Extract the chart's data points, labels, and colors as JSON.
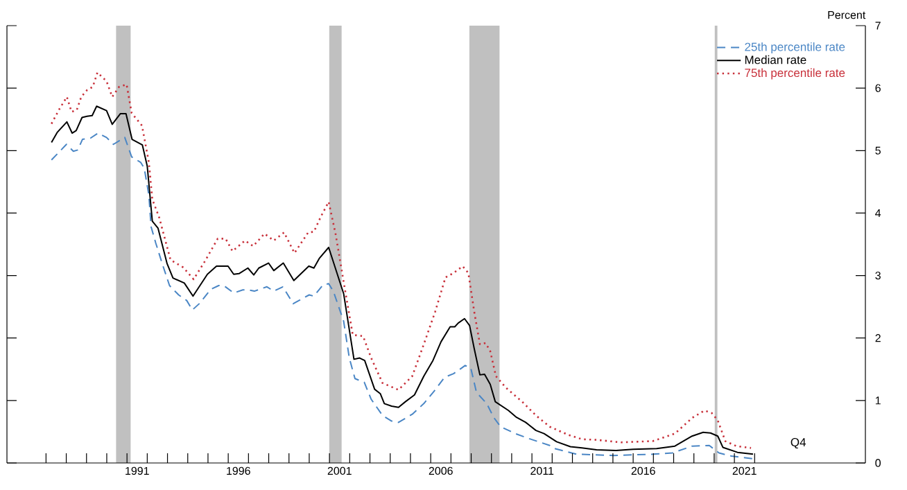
{
  "chart_data": {
    "type": "line",
    "ylabel": "Percent",
    "xlim": [
      1985.07,
      2027.47
    ],
    "ylim": [
      0,
      7
    ],
    "xticks": [
      {
        "value": 1987,
        "label": null
      },
      {
        "value": 1988,
        "label": null
      },
      {
        "value": 1989,
        "label": null
      },
      {
        "value": 1990,
        "label": null
      },
      {
        "value": 1991,
        "label": null
      },
      {
        "value": 1992,
        "label": null
      },
      {
        "value": 1993,
        "label": null
      },
      {
        "value": 1994,
        "label": null
      },
      {
        "value": 1995,
        "label": null
      },
      {
        "value": 1996,
        "label": null
      },
      {
        "value": 1997,
        "label": null
      },
      {
        "value": 1998,
        "label": null
      },
      {
        "value": 1999,
        "label": null
      },
      {
        "value": 2000,
        "label": null
      },
      {
        "value": 2001,
        "label": null
      },
      {
        "value": 2002,
        "label": null
      },
      {
        "value": 2003,
        "label": null
      },
      {
        "value": 2004,
        "label": null
      },
      {
        "value": 2005,
        "label": null
      },
      {
        "value": 2006,
        "label": null
      },
      {
        "value": 2007,
        "label": null
      },
      {
        "value": 2008,
        "label": null
      },
      {
        "value": 2009,
        "label": null
      },
      {
        "value": 2010,
        "label": null
      },
      {
        "value": 2011,
        "label": null
      },
      {
        "value": 2012,
        "label": null
      },
      {
        "value": 2013,
        "label": null
      },
      {
        "value": 2014,
        "label": null
      },
      {
        "value": 2015,
        "label": null
      },
      {
        "value": 2016,
        "label": null
      },
      {
        "value": 2017,
        "label": null
      },
      {
        "value": 2018,
        "label": null
      },
      {
        "value": 2019,
        "label": null
      },
      {
        "value": 2020,
        "label": null
      },
      {
        "value": 2021,
        "label": null
      },
      {
        "value": 2022,
        "label": null
      },
      {
        "value": 1991.5,
        "label": "1991"
      },
      {
        "value": 1996.5,
        "label": "1996"
      },
      {
        "value": 2001.5,
        "label": "2001"
      },
      {
        "value": 2006.5,
        "label": "2006"
      },
      {
        "value": 2011.5,
        "label": "2011"
      },
      {
        "value": 2016.5,
        "label": "2016"
      },
      {
        "value": 2021.5,
        "label": "2021"
      }
    ],
    "yticks": [
      0,
      1,
      2,
      3,
      4,
      5,
      6,
      7
    ],
    "legend": "top right",
    "annotations": [
      "Q4"
    ],
    "bands": [
      {
        "axis": "x",
        "from": 1990.46,
        "to": 1991.18,
        "color": "#c0c0c0"
      },
      {
        "axis": "x",
        "from": 2000.99,
        "to": 2001.6,
        "color": "#c0c0c0"
      },
      {
        "axis": "x",
        "from": 2007.91,
        "to": 2009.4,
        "color": "#c0c0c0"
      },
      {
        "axis": "x",
        "from": 2020.03,
        "to": 2020.16,
        "color": "#c0c0c0"
      }
    ],
    "series": [
      {
        "name": "25th percentile rate",
        "color": "#4a86c5",
        "line_style": "dashed",
        "x": [
          1987.27,
          1988.01,
          1988.35,
          1988.57,
          1988.8,
          1989.2,
          1989.57,
          1989.99,
          1990.33,
          1990.89,
          1991.23,
          1991.68,
          1991.85,
          1992.08,
          1992.19,
          1992.42,
          1992.76,
          1993.1,
          1993.55,
          1993.95,
          1994.23,
          1994.57,
          1995.14,
          1995.53,
          1995.82,
          1996.27,
          1996.72,
          1997.0,
          1997.29,
          1997.91,
          1998.25,
          1998.7,
          1999.21,
          1999.49,
          2000.0,
          2000.23,
          2000.68,
          2000.96,
          2001.19,
          2001.7,
          2001.98,
          2002.26,
          2002.72,
          2003.06,
          2003.62,
          2004.07,
          2004.41,
          2005.09,
          2005.66,
          2006.22,
          2006.68,
          2007.13,
          2007.36,
          2007.7,
          2007.98,
          2008.26,
          2008.77,
          2009.11,
          2009.45,
          2010.18,
          2010.86,
          2011.88,
          2012.12,
          2013.21,
          2015.03,
          2016.97,
          2017.94,
          2018.91,
          2019.76,
          2020.24,
          2020.85,
          2021.88
        ],
        "values": [
          4.85,
          5.1,
          4.99,
          5.01,
          5.18,
          5.2,
          5.28,
          5.21,
          5.1,
          5.21,
          4.9,
          4.81,
          4.72,
          4.29,
          3.78,
          3.52,
          3.17,
          2.84,
          2.69,
          2.6,
          2.45,
          2.55,
          2.78,
          2.84,
          2.83,
          2.72,
          2.77,
          2.77,
          2.75,
          2.82,
          2.75,
          2.82,
          2.55,
          2.6,
          2.69,
          2.67,
          2.85,
          2.87,
          2.75,
          2.27,
          1.68,
          1.35,
          1.29,
          1.02,
          0.76,
          0.67,
          0.65,
          0.78,
          0.95,
          1.17,
          1.37,
          1.43,
          1.48,
          1.56,
          1.52,
          1.13,
          0.95,
          0.73,
          0.58,
          0.47,
          0.39,
          0.28,
          0.23,
          0.14,
          0.12,
          0.14,
          0.16,
          0.27,
          0.28,
          0.16,
          0.11,
          0.07
        ]
      },
      {
        "name": "Median rate",
        "color": "#000000",
        "line_style": "solid",
        "x": [
          1987.27,
          1987.55,
          1988.03,
          1988.29,
          1988.49,
          1988.78,
          1989.03,
          1989.28,
          1989.5,
          1989.99,
          1990.27,
          1990.67,
          1990.95,
          1991.25,
          1991.76,
          1992.0,
          1992.25,
          1992.53,
          1992.98,
          1993.27,
          1993.83,
          1994.26,
          1994.97,
          1995.42,
          1995.99,
          1996.27,
          1996.53,
          1996.97,
          1997.26,
          1997.51,
          1997.99,
          1998.25,
          1998.72,
          1999.24,
          1999.98,
          2000.23,
          2000.51,
          2000.96,
          2001.7,
          2002.21,
          2002.49,
          2002.74,
          2003.23,
          2003.51,
          2003.71,
          2004.07,
          2004.41,
          2004.75,
          2005.2,
          2005.66,
          2006.11,
          2006.51,
          2006.96,
          2007.19,
          2007.36,
          2007.67,
          2007.92,
          2008.15,
          2008.43,
          2008.66,
          2008.94,
          2009.19,
          2009.84,
          2010.24,
          2010.69,
          2011.2,
          2011.6,
          2012.22,
          2012.9,
          2013.47,
          2014.19,
          2015.15,
          2016.0,
          2017.16,
          2018.06,
          2018.91,
          2019.46,
          2019.82,
          2020.18,
          2020.43,
          2021.15,
          2021.92
        ],
        "values": [
          5.13,
          5.29,
          5.46,
          5.28,
          5.32,
          5.53,
          5.55,
          5.56,
          5.71,
          5.64,
          5.42,
          5.59,
          5.59,
          5.18,
          5.09,
          4.75,
          3.87,
          3.76,
          3.19,
          2.96,
          2.88,
          2.67,
          3.02,
          3.15,
          3.15,
          3.02,
          3.03,
          3.12,
          3.01,
          3.12,
          3.2,
          3.08,
          3.2,
          2.92,
          3.15,
          3.12,
          3.28,
          3.45,
          2.71,
          1.66,
          1.68,
          1.64,
          1.18,
          1.11,
          0.95,
          0.91,
          0.89,
          0.98,
          1.09,
          1.39,
          1.64,
          1.94,
          2.18,
          2.18,
          2.24,
          2.31,
          2.2,
          1.83,
          1.41,
          1.42,
          1.26,
          0.98,
          0.84,
          0.73,
          0.65,
          0.52,
          0.47,
          0.34,
          0.26,
          0.24,
          0.21,
          0.2,
          0.22,
          0.23,
          0.27,
          0.43,
          0.49,
          0.48,
          0.43,
          0.25,
          0.17,
          0.14
        ]
      },
      {
        "name": "75th percentile rate",
        "color": "#c8303a",
        "line_style": "dotted",
        "x": [
          1987.27,
          1987.67,
          1988.03,
          1988.26,
          1988.52,
          1988.74,
          1989.03,
          1989.31,
          1989.54,
          1989.99,
          1990.27,
          1990.61,
          1990.98,
          1991.23,
          1991.74,
          1992.08,
          1992.25,
          1992.59,
          1993.15,
          1993.78,
          1994.29,
          1994.85,
          1995.48,
          1995.87,
          1996.21,
          1996.83,
          1997.23,
          1997.79,
          1998.25,
          1998.76,
          1999.27,
          1999.95,
          2000.23,
          2000.57,
          2000.96,
          2001.3,
          2001.7,
          2002.15,
          2002.66,
          2003.06,
          2003.62,
          2004.41,
          2005.09,
          2005.66,
          2006.22,
          2006.73,
          2007.13,
          2007.58,
          2007.86,
          2008.15,
          2008.43,
          2008.71,
          2008.94,
          2009.22,
          2009.73,
          2010.52,
          2011.2,
          2011.88,
          2012.79,
          2013.47,
          2014.19,
          2015.4,
          2016.97,
          2018.06,
          2018.91,
          2019.52,
          2019.88,
          2020.18,
          2020.55,
          2021.09,
          2021.82
        ],
        "values": [
          5.43,
          5.67,
          5.86,
          5.62,
          5.65,
          5.86,
          5.97,
          6.02,
          6.25,
          6.11,
          5.86,
          6.02,
          6.06,
          5.6,
          5.4,
          4.81,
          4.22,
          3.93,
          3.25,
          3.13,
          2.94,
          3.23,
          3.59,
          3.59,
          3.39,
          3.56,
          3.47,
          3.67,
          3.56,
          3.69,
          3.36,
          3.69,
          3.7,
          3.94,
          4.18,
          3.67,
          2.9,
          2.05,
          2.03,
          1.68,
          1.28,
          1.17,
          1.39,
          1.9,
          2.42,
          2.97,
          3.04,
          3.15,
          3.04,
          2.42,
          1.9,
          1.92,
          1.79,
          1.39,
          1.2,
          0.98,
          0.76,
          0.58,
          0.45,
          0.38,
          0.37,
          0.33,
          0.35,
          0.47,
          0.72,
          0.84,
          0.8,
          0.68,
          0.35,
          0.27,
          0.24
        ]
      }
    ]
  }
}
